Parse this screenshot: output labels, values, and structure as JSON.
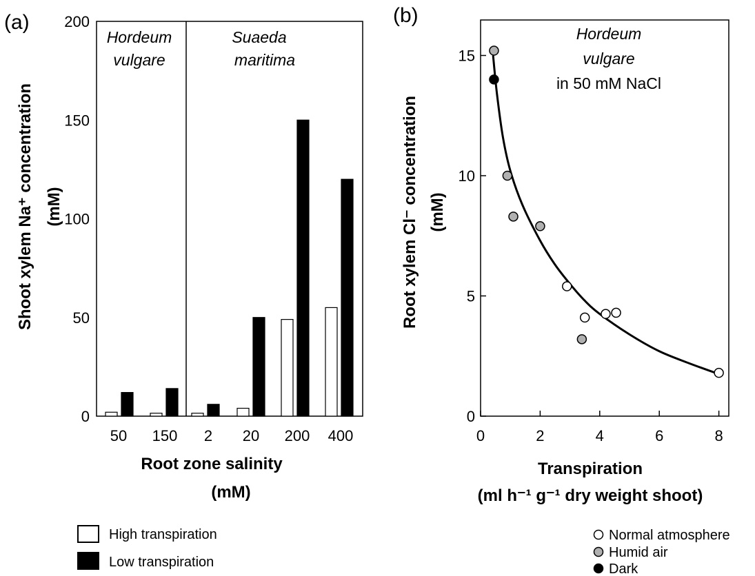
{
  "chart_data": [
    {
      "panel_label": "(a)",
      "type": "bar",
      "ylabel_line1": "Shoot xylem Na⁺ concentration",
      "ylabel_line2": "(mM)",
      "xlabel_line1": "Root zone salinity",
      "xlabel_line2": "(mM)",
      "ylim": [
        0,
        200
      ],
      "yticks": [
        "0",
        "50",
        "100",
        "150",
        "200"
      ],
      "categories": [
        "50",
        "150",
        "2",
        "20",
        "200",
        "400"
      ],
      "groups": [
        {
          "name_line1": "Hordeum",
          "name_line2": "vulgare"
        },
        {
          "name_line1": "Suaeda",
          "name_line2": "maritima"
        }
      ],
      "series": [
        {
          "name": "High transpiration",
          "color": "#ffffff",
          "values": [
            2,
            1.5,
            1.5,
            4,
            49,
            55
          ]
        },
        {
          "name": "Low transpiration",
          "color": "#000000",
          "values": [
            12,
            14,
            6,
            50,
            150,
            120
          ]
        }
      ]
    },
    {
      "panel_label": "(b)",
      "type": "scatter",
      "annotation_line1": "Hordeum",
      "annotation_line2": "vulgare",
      "annotation_line3": "in 50 mM NaCl",
      "ylabel_line1": "Root xylem Cl⁻ concentration",
      "ylabel_line2": "(mM)",
      "xlabel_line1": "Transpiration",
      "xlabel_line2": "(ml h⁻¹ g⁻¹ dry weight shoot)",
      "xlim": [
        0,
        8.5
      ],
      "ylim": [
        0,
        17
      ],
      "xticks": [
        "0",
        "2",
        "4",
        "6",
        "8"
      ],
      "yticks": [
        "0",
        "5",
        "10",
        "15"
      ],
      "series": [
        {
          "name": "Normal atmosphere",
          "color": "#ffffff",
          "points": [
            [
              2.9,
              5.4
            ],
            [
              3.5,
              4.1
            ],
            [
              4.2,
              4.25
            ],
            [
              4.55,
              4.3
            ],
            [
              8.0,
              1.8
            ]
          ]
        },
        {
          "name": "Humid air",
          "color": "#b0b0b0",
          "points": [
            [
              0.45,
              15.2
            ],
            [
              0.9,
              10.0
            ],
            [
              1.1,
              8.3
            ],
            [
              2.0,
              7.9
            ],
            [
              3.4,
              3.2
            ]
          ]
        },
        {
          "name": "Dark",
          "color": "#000000",
          "points": [
            [
              0.45,
              14.0
            ]
          ]
        }
      ],
      "fit_curve": [
        [
          0.42,
          15.0
        ],
        [
          0.55,
          13.4
        ],
        [
          0.75,
          11.6
        ],
        [
          1.0,
          10.2
        ],
        [
          1.4,
          8.8
        ],
        [
          2.0,
          7.3
        ],
        [
          2.5,
          6.3
        ],
        [
          3.0,
          5.5
        ],
        [
          3.5,
          4.8
        ],
        [
          4.0,
          4.25
        ],
        [
          5.0,
          3.4
        ],
        [
          6.0,
          2.7
        ],
        [
          7.0,
          2.2
        ],
        [
          8.0,
          1.75
        ]
      ]
    }
  ]
}
